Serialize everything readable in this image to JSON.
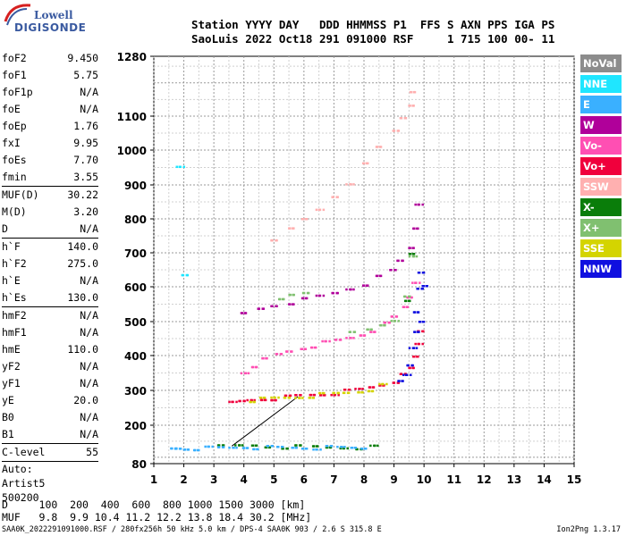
{
  "logo": {
    "line1": "Lowell",
    "line2": "DIGISONDE"
  },
  "header": {
    "labels": "Station YYYY DAY   DDD HHMMSS P1  FFS S AXN PPS IGA PS",
    "values": "SaoLuis 2022 Oct18 291 091000 RSF     1 715 100 00- 11"
  },
  "params": [
    {
      "label": "foF2",
      "value": "9.450"
    },
    {
      "label": "foF1",
      "value": "5.75"
    },
    {
      "label": "foF1p",
      "value": "N/A"
    },
    {
      "label": "foE",
      "value": "N/A"
    },
    {
      "label": "foEp",
      "value": "1.76"
    },
    {
      "label": "fxI",
      "value": "9.95"
    },
    {
      "label": "foEs",
      "value": "7.70"
    },
    {
      "label": "fmin",
      "value": "3.55"
    },
    {
      "sep": true
    },
    {
      "label": "MUF(D)",
      "value": "30.22"
    },
    {
      "label": "M(D)",
      "value": "3.20"
    },
    {
      "label": "D",
      "value": "N/A"
    },
    {
      "sep": true
    },
    {
      "label": "h`F",
      "value": "140.0"
    },
    {
      "label": "h`F2",
      "value": "275.0"
    },
    {
      "label": "h`E",
      "value": "N/A"
    },
    {
      "label": "h`Es",
      "value": "130.0"
    },
    {
      "sep": true
    },
    {
      "label": "hmF2",
      "value": "N/A"
    },
    {
      "label": "hmF1",
      "value": "N/A"
    },
    {
      "label": "hmE",
      "value": "110.0"
    },
    {
      "label": "yF2",
      "value": "N/A"
    },
    {
      "label": "yF1",
      "value": "N/A"
    },
    {
      "label": "yE",
      "value": "20.0"
    },
    {
      "label": "B0",
      "value": "N/A"
    },
    {
      "label": "B1",
      "value": "N/A"
    },
    {
      "sep": true
    },
    {
      "label": "C-level",
      "value": "55"
    },
    {
      "sep": true
    },
    {
      "text": "Auto:"
    },
    {
      "text": "Artist5"
    },
    {
      "text": "500200"
    }
  ],
  "legend": [
    {
      "label": "NoVal",
      "color": "#8c8c8c"
    },
    {
      "label": "NNE",
      "color": "#1fe6ff"
    },
    {
      "label": "E",
      "color": "#3ab0ff"
    },
    {
      "label": "W",
      "color": "#b0009a"
    },
    {
      "label": "Vo-",
      "color": "#ff4fb3"
    },
    {
      "label": "Vo+",
      "color": "#f0003c"
    },
    {
      "label": "SSW",
      "color": "#ffb0b0"
    },
    {
      "label": "X-",
      "color": "#0a7d0a"
    },
    {
      "label": "X+",
      "color": "#80c070"
    },
    {
      "label": "SSE",
      "color": "#d4d400"
    },
    {
      "label": "NNW",
      "color": "#1010e0"
    }
  ],
  "muf_table": {
    "d_line": "D     100  200  400  600  800 1000 1500 3000 [km]",
    "muf_line": "MUF   9.8  9.9 10.4 11.2 12.2 13.8 18.4 30.2 [MHz]"
  },
  "footer": {
    "left": "SAA0K_2022291091000.RSF / 280fx256h 50 kHz 5.0 km / DPS-4 SAA0K 903 / 2.6 S 315.8 E",
    "right": "Ion2Png 1.3.17"
  },
  "chart_data": {
    "type": "scatter",
    "title": "",
    "xlabel": "",
    "ylabel": "",
    "xlim": [
      1,
      15
    ],
    "ylim": [
      80,
      1280
    ],
    "x_ticks": [
      1,
      2,
      3,
      4,
      5,
      6,
      7,
      8,
      9,
      10,
      11,
      12,
      13,
      14,
      15
    ],
    "y_ticks": [
      80,
      200,
      300,
      400,
      500,
      600,
      700,
      800,
      900,
      1000,
      1100,
      1280
    ],
    "y_scale": "reciprocal",
    "grid": true,
    "series": [
      {
        "name": "Vo+",
        "color": "#f0003c",
        "x": [
          3.6,
          3.9,
          4.2,
          4.6,
          5.0,
          5.4,
          5.8,
          6.2,
          6.6,
          7.0,
          7.4,
          7.8,
          8.2,
          8.6,
          9.0,
          9.3,
          9.5,
          9.7,
          9.8,
          9.85
        ],
        "y": [
          265,
          270,
          275,
          278,
          280,
          283,
          287,
          290,
          292,
          295,
          300,
          305,
          312,
          320,
          330,
          345,
          365,
          400,
          440,
          480
        ]
      },
      {
        "name": "Vo-",
        "color": "#ff4fb3",
        "x": [
          4.0,
          4.3,
          4.7,
          5.1,
          5.5,
          5.9,
          6.3,
          6.7,
          7.1,
          7.5,
          7.9,
          8.3,
          8.7,
          9.0,
          9.3,
          9.5,
          9.7
        ],
        "y": [
          355,
          375,
          390,
          405,
          415,
          425,
          432,
          440,
          447,
          455,
          465,
          478,
          495,
          515,
          545,
          575,
          620
        ]
      },
      {
        "name": "W",
        "color": "#b0009a",
        "x": [
          4.0,
          4.5,
          5.0,
          5.5,
          6.0,
          6.5,
          7.0,
          7.5,
          8.0,
          8.5,
          8.9,
          9.2,
          9.5,
          9.7,
          9.8
        ],
        "y": [
          525,
          540,
          550,
          558,
          565,
          575,
          585,
          598,
          612,
          630,
          650,
          680,
          720,
          780,
          840
        ]
      },
      {
        "name": "SSW",
        "color": "#ffb0b0",
        "x": [
          5.0,
          5.5,
          6.0,
          6.5,
          7.0,
          7.5,
          8.0,
          8.5,
          9.0,
          9.3,
          9.5,
          9.6
        ],
        "y": [
          745,
          770,
          800,
          830,
          870,
          910,
          960,
          1010,
          1060,
          1100,
          1140,
          1170
        ]
      },
      {
        "name": "NNW",
        "color": "#1010e0",
        "x": [
          9.2,
          9.4,
          9.5,
          9.6,
          9.7,
          9.75,
          9.8,
          9.9,
          9.95,
          9.9
        ],
        "y": [
          330,
          350,
          380,
          420,
          470,
          530,
          600,
          650,
          600,
          500
        ]
      },
      {
        "name": "X-",
        "color": "#0a7d0a",
        "x": [
          3.2,
          3.8,
          4.3,
          4.8,
          5.3,
          5.8,
          6.3,
          6.8,
          7.3,
          7.8,
          8.3,
          9.4,
          9.6
        ],
        "y": [
          135,
          138,
          140,
          137,
          136,
          135,
          135,
          134,
          134,
          134,
          134,
          560,
          700
        ]
      },
      {
        "name": "X+",
        "color": "#80c070",
        "x": [
          5.2,
          5.6,
          6.0,
          7.6,
          8.1,
          8.6,
          9.0,
          9.4,
          9.6
        ],
        "y": [
          570,
          585,
          580,
          470,
          480,
          495,
          510,
          570,
          690
        ]
      },
      {
        "name": "E",
        "color": "#3ab0ff",
        "x": [
          1.6,
          1.8,
          2.0,
          2.4,
          2.8,
          3.2,
          3.6,
          4.0,
          4.4,
          4.8,
          5.2,
          5.6,
          6.0,
          6.4,
          6.8,
          7.2,
          7.6,
          8.0
        ],
        "y": [
          128,
          130,
          130,
          131,
          131,
          132,
          133,
          135,
          134,
          133,
          133,
          133,
          133,
          133,
          133,
          133,
          133,
          133
        ]
      },
      {
        "name": "SSE",
        "color": "#d4d400",
        "x": [
          4.2,
          4.6,
          5.0,
          5.4,
          5.8,
          6.2,
          6.6,
          7.0,
          7.4,
          7.8,
          8.2,
          8.6
        ],
        "y": [
          275,
          277,
          280,
          282,
          284,
          287,
          290,
          293,
          296,
          300,
          306,
          316
        ]
      },
      {
        "name": "NNE",
        "color": "#1fe6ff",
        "x": [
          1.85,
          2.0
        ],
        "y": [
          955,
          640
        ]
      }
    ]
  }
}
